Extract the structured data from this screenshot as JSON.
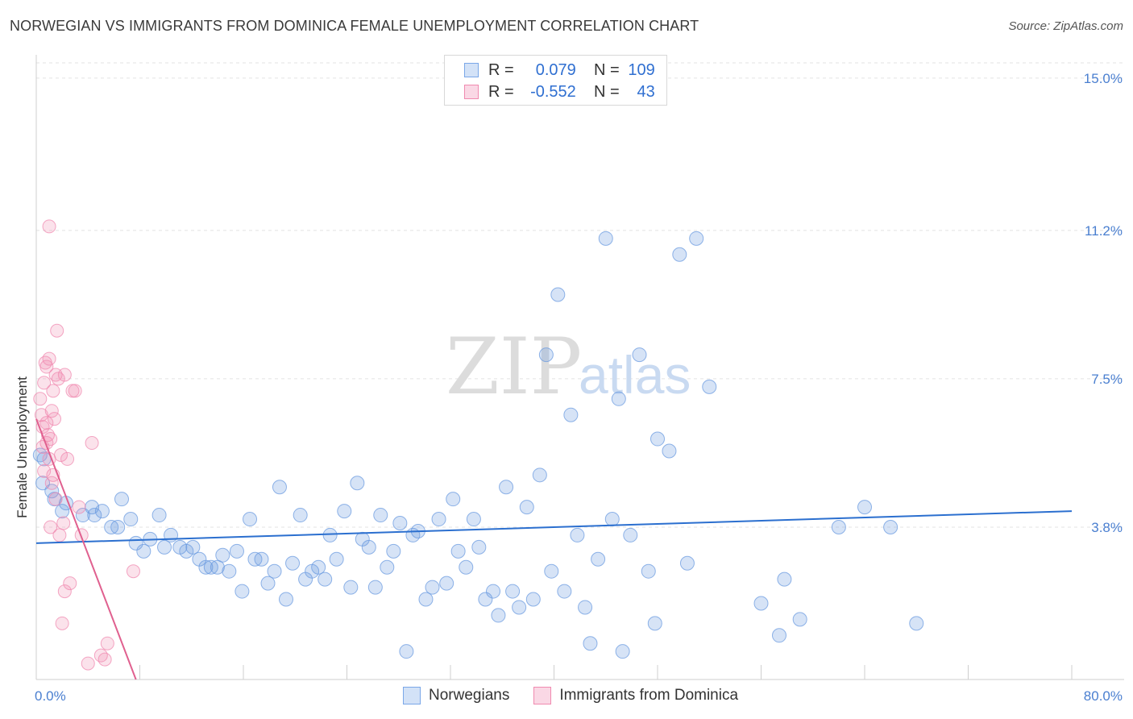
{
  "header": {
    "title": "NORWEGIAN VS IMMIGRANTS FROM DOMINICA FEMALE UNEMPLOYMENT CORRELATION CHART",
    "source": "Source: ZipAtlas.com"
  },
  "watermark": {
    "zip": "ZIP",
    "atlas": "atlas"
  },
  "legend": {
    "rows": [
      {
        "r_label": "R =",
        "r_value": "0.079",
        "n_label": "N =",
        "n_value": "109",
        "color": "#7aa7e8"
      },
      {
        "r_label": "R =",
        "r_value": "-0.552",
        "n_label": "N =",
        "n_value": "43",
        "color": "#f08ab0"
      }
    ]
  },
  "bottom_legend": {
    "items": [
      {
        "label": "Norwegians",
        "color": "#7aa7e8"
      },
      {
        "label": "Immigrants from Dominica",
        "color": "#f08ab0"
      }
    ]
  },
  "chart_data": {
    "type": "scatter",
    "ylabel": "Female Unemployment",
    "xlabel": "",
    "x_tick_labels": {
      "min": "0.0%",
      "max": "80.0%"
    },
    "y_tick_labels": [
      "3.8%",
      "7.5%",
      "11.2%",
      "15.0%"
    ],
    "y_ticks": [
      3.8,
      7.5,
      11.2,
      15.0
    ],
    "xlim": [
      0,
      80
    ],
    "ylim": [
      0,
      15.5
    ],
    "colors": {
      "blue": "#6b9be0",
      "blue_line": "#2b6fcf",
      "pink": "#f08ab0",
      "pink_line": "#e0608f"
    },
    "series": [
      {
        "name": "Norwegians",
        "trend": {
          "x": [
            0,
            80
          ],
          "y": [
            3.4,
            4.2
          ]
        },
        "points": [
          [
            0.5,
            4.9
          ],
          [
            0.6,
            5.5
          ],
          [
            1.2,
            4.7
          ],
          [
            1.4,
            4.5
          ],
          [
            2.0,
            4.2
          ],
          [
            2.3,
            4.4
          ],
          [
            3.6,
            4.1
          ],
          [
            4.3,
            4.3
          ],
          [
            4.5,
            4.1
          ],
          [
            5.1,
            4.2
          ],
          [
            5.8,
            3.8
          ],
          [
            6.3,
            3.8
          ],
          [
            6.6,
            4.5
          ],
          [
            7.3,
            4.0
          ],
          [
            7.7,
            3.4
          ],
          [
            8.3,
            3.2
          ],
          [
            8.8,
            3.5
          ],
          [
            9.5,
            4.1
          ],
          [
            9.9,
            3.3
          ],
          [
            10.4,
            3.6
          ],
          [
            11.1,
            3.3
          ],
          [
            11.6,
            3.2
          ],
          [
            12.1,
            3.3
          ],
          [
            12.6,
            3.0
          ],
          [
            13.1,
            2.8
          ],
          [
            13.5,
            2.8
          ],
          [
            14.0,
            2.8
          ],
          [
            14.4,
            3.1
          ],
          [
            14.9,
            2.7
          ],
          [
            15.5,
            3.2
          ],
          [
            15.9,
            2.2
          ],
          [
            16.5,
            4.0
          ],
          [
            16.9,
            3.0
          ],
          [
            17.4,
            3.0
          ],
          [
            17.9,
            2.4
          ],
          [
            18.4,
            2.7
          ],
          [
            18.8,
            4.8
          ],
          [
            19.3,
            2.0
          ],
          [
            19.8,
            2.9
          ],
          [
            20.4,
            4.1
          ],
          [
            20.8,
            2.5
          ],
          [
            21.3,
            2.7
          ],
          [
            21.8,
            2.8
          ],
          [
            22.3,
            2.5
          ],
          [
            22.7,
            3.6
          ],
          [
            23.2,
            3.0
          ],
          [
            23.8,
            4.2
          ],
          [
            24.3,
            2.3
          ],
          [
            24.8,
            4.9
          ],
          [
            25.2,
            3.5
          ],
          [
            25.7,
            3.3
          ],
          [
            26.2,
            2.3
          ],
          [
            26.6,
            4.1
          ],
          [
            27.1,
            2.8
          ],
          [
            27.6,
            3.2
          ],
          [
            28.1,
            3.9
          ],
          [
            28.6,
            0.7
          ],
          [
            29.1,
            3.6
          ],
          [
            29.5,
            3.7
          ],
          [
            30.1,
            2.0
          ],
          [
            30.6,
            2.3
          ],
          [
            31.1,
            4.0
          ],
          [
            31.7,
            2.4
          ],
          [
            32.2,
            4.5
          ],
          [
            32.6,
            3.2
          ],
          [
            33.2,
            2.8
          ],
          [
            33.8,
            4.0
          ],
          [
            34.2,
            3.3
          ],
          [
            34.7,
            2.0
          ],
          [
            35.3,
            2.2
          ],
          [
            35.7,
            1.6
          ],
          [
            36.3,
            4.8
          ],
          [
            36.8,
            2.2
          ],
          [
            37.3,
            1.8
          ],
          [
            37.9,
            4.3
          ],
          [
            38.4,
            2.0
          ],
          [
            38.9,
            5.1
          ],
          [
            39.4,
            8.1
          ],
          [
            39.8,
            2.7
          ],
          [
            40.3,
            9.6
          ],
          [
            40.8,
            2.2
          ],
          [
            41.3,
            6.6
          ],
          [
            41.8,
            3.6
          ],
          [
            42.4,
            1.8
          ],
          [
            42.8,
            0.9
          ],
          [
            43.4,
            3.0
          ],
          [
            44.0,
            11.0
          ],
          [
            44.5,
            4.0
          ],
          [
            45.0,
            7.0
          ],
          [
            45.3,
            0.7
          ],
          [
            45.9,
            3.6
          ],
          [
            46.6,
            8.1
          ],
          [
            47.3,
            2.7
          ],
          [
            47.8,
            1.4
          ],
          [
            48.0,
            6.0
          ],
          [
            48.9,
            5.7
          ],
          [
            49.7,
            10.6
          ],
          [
            50.3,
            2.9
          ],
          [
            51.0,
            11.0
          ],
          [
            52.0,
            7.3
          ],
          [
            56.0,
            1.9
          ],
          [
            57.4,
            1.1
          ],
          [
            57.8,
            2.5
          ],
          [
            59.0,
            1.5
          ],
          [
            62.0,
            3.8
          ],
          [
            64.0,
            4.3
          ],
          [
            66.0,
            3.8
          ],
          [
            68.0,
            1.4
          ],
          [
            0.3,
            5.6
          ]
        ]
      },
      {
        "name": "Immigrants from Dominica",
        "trend": {
          "x": [
            0,
            7.7
          ],
          "y": [
            6.5,
            0.0
          ]
        },
        "points": [
          [
            0.3,
            7.0
          ],
          [
            0.4,
            6.6
          ],
          [
            0.5,
            5.8
          ],
          [
            0.6,
            5.2
          ],
          [
            0.6,
            7.4
          ],
          [
            0.7,
            7.9
          ],
          [
            0.8,
            6.4
          ],
          [
            0.8,
            7.8
          ],
          [
            0.9,
            6.1
          ],
          [
            1.0,
            5.5
          ],
          [
            1.0,
            8.0
          ],
          [
            1.1,
            6.0
          ],
          [
            1.1,
            3.8
          ],
          [
            1.2,
            4.9
          ],
          [
            1.2,
            6.7
          ],
          [
            1.3,
            7.2
          ],
          [
            1.3,
            5.1
          ],
          [
            1.4,
            6.5
          ],
          [
            1.5,
            7.6
          ],
          [
            1.6,
            8.7
          ],
          [
            1.7,
            7.5
          ],
          [
            1.8,
            3.6
          ],
          [
            1.9,
            5.6
          ],
          [
            2.0,
            1.4
          ],
          [
            2.1,
            3.9
          ],
          [
            2.2,
            2.2
          ],
          [
            2.2,
            7.6
          ],
          [
            2.4,
            5.5
          ],
          [
            2.6,
            2.4
          ],
          [
            2.8,
            7.2
          ],
          [
            3.0,
            7.2
          ],
          [
            3.3,
            4.3
          ],
          [
            3.5,
            3.6
          ],
          [
            4.0,
            0.4
          ],
          [
            4.3,
            5.9
          ],
          [
            5.0,
            0.6
          ],
          [
            5.3,
            0.5
          ],
          [
            5.5,
            0.9
          ],
          [
            7.5,
            2.7
          ],
          [
            1.0,
            11.3
          ],
          [
            0.5,
            6.3
          ],
          [
            0.8,
            5.9
          ],
          [
            1.5,
            4.5
          ]
        ]
      }
    ]
  }
}
